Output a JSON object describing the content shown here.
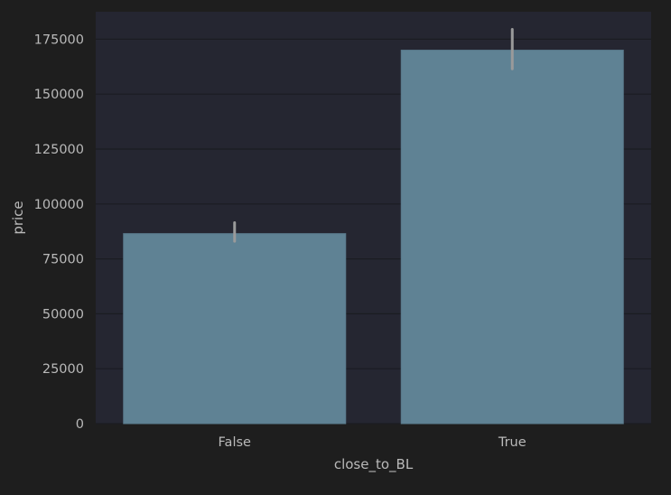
{
  "colors": {
    "figure_background": "#1e1e1e",
    "plot_background": "#252631",
    "grid": "#1b1c22",
    "bar_fill": "#5f8294",
    "bar_edge": "#5a7a8c",
    "error_bar": "#9a9a9a",
    "text": "#b9b9b9"
  },
  "chart_data": {
    "type": "bar",
    "title": "",
    "xlabel": "close_to_BL",
    "ylabel": "price",
    "categories": [
      "False",
      "True"
    ],
    "values": [
      86500,
      170000
    ],
    "error_bars": [
      {
        "low": 83000,
        "high": 91500
      },
      {
        "low": 161500,
        "high": 179500
      }
    ],
    "ylim": [
      0,
      187500
    ],
    "yticks": [
      0,
      25000,
      50000,
      75000,
      100000,
      125000,
      150000,
      175000
    ],
    "ytick_labels": [
      "0",
      "25000",
      "50000",
      "75000",
      "100000",
      "125000",
      "150000",
      "175000"
    ],
    "grid": true,
    "legend": "none"
  }
}
